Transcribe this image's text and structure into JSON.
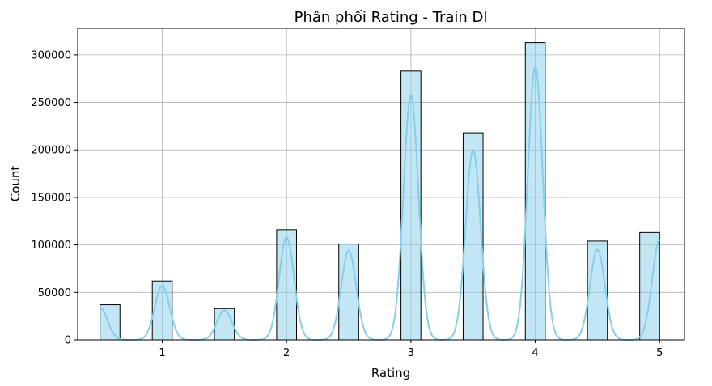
{
  "chart_data": {
    "type": "bar",
    "title": "Phân phối Rating - Train Dl",
    "xlabel": "Rating",
    "ylabel": "Count",
    "x": [
      0.5,
      1,
      1.5,
      2,
      2.5,
      3,
      3.5,
      4,
      4.5,
      5
    ],
    "values": [
      37000,
      62000,
      33000,
      116000,
      101000,
      283000,
      218000,
      313000,
      104000,
      113000
    ],
    "kde_peaks": [
      34000,
      57000,
      31000,
      108000,
      94000,
      258000,
      200000,
      288000,
      95000,
      105000
    ],
    "xlim": [
      0.32,
      5.2
    ],
    "ylim": [
      0,
      328000
    ],
    "xticks": [
      1,
      2,
      3,
      4,
      5
    ],
    "yticks": [
      0,
      50000,
      100000,
      150000,
      200000,
      250000,
      300000
    ],
    "grid": true,
    "bar_color": "#87CEEB",
    "bar_edge_color": "#000000",
    "kde_color": "#87CEEB"
  }
}
